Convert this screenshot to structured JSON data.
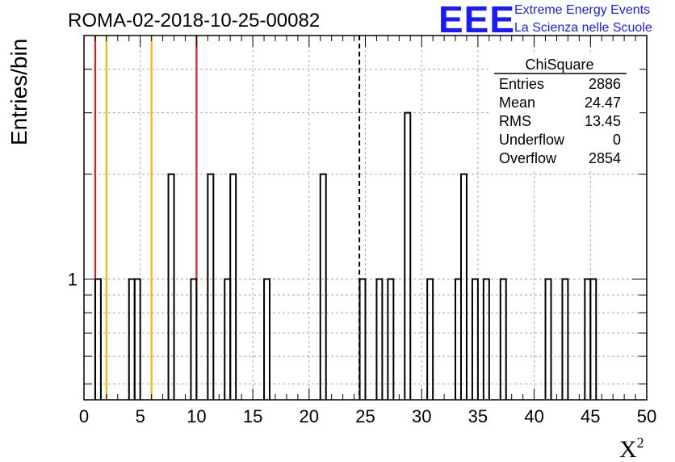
{
  "chart_data": {
    "type": "bar",
    "title": "ROMA-02-2018-10-25-00082",
    "xlabel": "X",
    "xlabel_superscript": "2",
    "ylabel": "Entries/bin",
    "xlim": [
      0,
      50
    ],
    "xticks": [
      0,
      5,
      10,
      15,
      20,
      25,
      30,
      35,
      40,
      45,
      50
    ],
    "ylim": [
      0.45,
      5.0
    ],
    "ytick_labels": [
      {
        "value": 1,
        "label": "1"
      }
    ],
    "yscale": "log",
    "grid": true,
    "bin_width": 0.5,
    "bins": [
      {
        "x": 1.0,
        "value": 1
      },
      {
        "x": 4.0,
        "value": 1
      },
      {
        "x": 4.5,
        "value": 1
      },
      {
        "x": 7.5,
        "value": 2
      },
      {
        "x": 9.5,
        "value": 1
      },
      {
        "x": 11.0,
        "value": 2
      },
      {
        "x": 12.5,
        "value": 1
      },
      {
        "x": 13.0,
        "value": 2
      },
      {
        "x": 16.0,
        "value": 1
      },
      {
        "x": 21.0,
        "value": 2
      },
      {
        "x": 24.5,
        "value": 1
      },
      {
        "x": 26.0,
        "value": 1
      },
      {
        "x": 27.0,
        "value": 1
      },
      {
        "x": 28.5,
        "value": 3
      },
      {
        "x": 30.5,
        "value": 1
      },
      {
        "x": 33.0,
        "value": 1
      },
      {
        "x": 33.5,
        "value": 2
      },
      {
        "x": 34.5,
        "value": 1
      },
      {
        "x": 35.5,
        "value": 1
      },
      {
        "x": 37.0,
        "value": 1
      },
      {
        "x": 41.0,
        "value": 1
      },
      {
        "x": 42.5,
        "value": 1
      },
      {
        "x": 44.5,
        "value": 1
      },
      {
        "x": 45.0,
        "value": 1
      }
    ],
    "reference_lines": [
      {
        "x": 1,
        "color": "#e02020",
        "style": "solid"
      },
      {
        "x": 2,
        "color": "#f5b800",
        "style": "solid"
      },
      {
        "x": 6,
        "color": "#f5b800",
        "style": "solid"
      },
      {
        "x": 10,
        "color": "#e02020",
        "style": "solid"
      },
      {
        "x": 24.47,
        "color": "#000000",
        "style": "dashed"
      }
    ]
  },
  "stats_box": {
    "title": "ChiSquare",
    "rows": [
      {
        "label": "Entries",
        "value": "2886"
      },
      {
        "label": "Mean",
        "value": "24.47"
      },
      {
        "label": "RMS",
        "value": "13.45"
      },
      {
        "label": "Underflow",
        "value": "0"
      },
      {
        "label": "Overflow",
        "value": "2854"
      }
    ]
  },
  "branding": {
    "logo": "EEE",
    "line1": "Extreme Energy Events",
    "line2": "La Scienza nelle Scuole",
    "color": "#1a1aff"
  }
}
